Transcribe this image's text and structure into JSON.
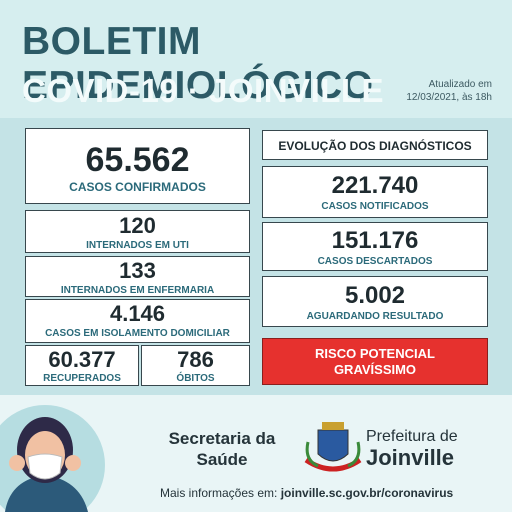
{
  "header": {
    "title": "BOLETIM EPIDEMIOLÓGICO",
    "subtitle": "COVID-19 · JOINVILLE",
    "updated": [
      "Atualizado em",
      "12/03/2021, às 18h"
    ]
  },
  "left": {
    "cards": [
      {
        "value": "65.562",
        "label": "CASOS CONFIRMADOS"
      },
      {
        "value": "120",
        "label": "INTERNADOS EM UTI"
      },
      {
        "value": "133",
        "label": "INTERNADOS EM ENFERMARIA"
      },
      {
        "value": "4.146",
        "label": "CASOS EM ISOLAMENTO DOMICILIAR"
      },
      {
        "value": "60.377",
        "label": "RECUPERADOS"
      },
      {
        "value": "786",
        "label": "ÓBITOS"
      }
    ]
  },
  "right": {
    "title": "EVOLUÇÃO DOS DIAGNÓSTICOS",
    "items": [
      {
        "value": "221.740",
        "label": "CASOS NOTIFICADOS"
      },
      {
        "value": "151.176",
        "label": "CASOS DESCARTADOS"
      },
      {
        "value": "5.002",
        "label": "AGUARDANDO RESULTADO"
      }
    ]
  },
  "risk": [
    "RISCO POTENCIAL",
    "GRAVÍSSIMO"
  ],
  "footer": {
    "secretaria": [
      "Secretaria da",
      "Saúde"
    ],
    "prefeitura": [
      "Prefeitura de",
      "Joinville"
    ],
    "more_info": "Mais informações em:",
    "url": "joinville.sc.gov.br/coronavirus"
  }
}
